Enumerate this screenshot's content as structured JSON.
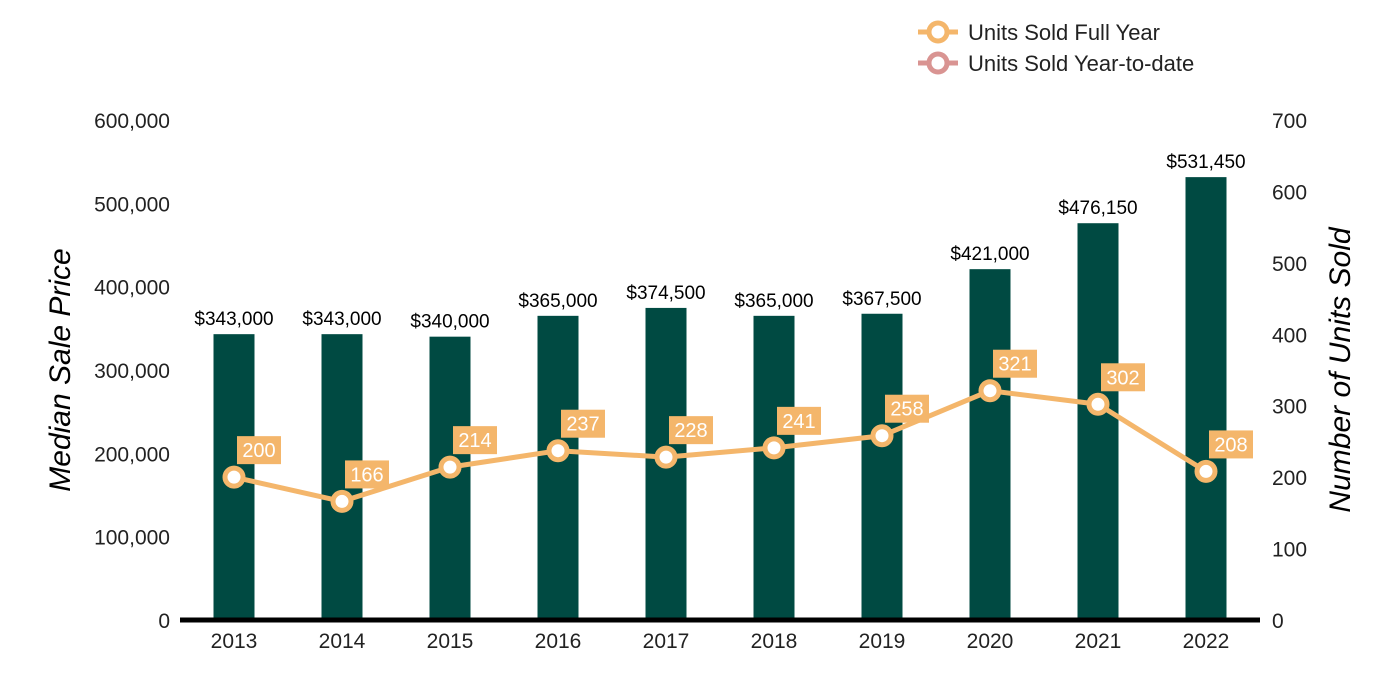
{
  "colors": {
    "bar": "#004a42",
    "line_full_year": "#f4b66b",
    "line_ytd": "#d99492",
    "baseline": "#000000"
  },
  "chart_data": {
    "type": "bar",
    "categories": [
      "2013",
      "2014",
      "2015",
      "2016",
      "2017",
      "2018",
      "2019",
      "2020",
      "2021",
      "2022"
    ],
    "series": [
      {
        "name": "Median Sale Price",
        "type": "bar",
        "axis": "left",
        "values": [
          343000,
          343000,
          340000,
          365000,
          374500,
          365000,
          367500,
          421000,
          476150,
          531450
        ],
        "labels": [
          "$343,000",
          "$343,000",
          "$340,000",
          "$365,000",
          "$374,500",
          "$365,000",
          "$367,500",
          "$421,000",
          "$476,150",
          "$531,450"
        ]
      },
      {
        "name": "Units Sold Full Year",
        "type": "line",
        "axis": "right",
        "values": [
          200,
          166,
          214,
          237,
          228,
          241,
          258,
          321,
          302,
          208
        ],
        "labels": [
          "200",
          "166",
          "214",
          "237",
          "228",
          "241",
          "258",
          "321",
          "302",
          "208"
        ]
      }
    ],
    "y_left": {
      "label": "Median Sale Price",
      "range": [
        0,
        600000
      ],
      "ticks": [
        0,
        100000,
        200000,
        300000,
        400000,
        500000,
        600000
      ],
      "tick_labels": [
        "0",
        "100,000",
        "200,000",
        "300,000",
        "400,000",
        "500,000",
        "600,000"
      ]
    },
    "y_right": {
      "label": "Number of Units Sold",
      "range": [
        0,
        700
      ],
      "ticks": [
        0,
        100,
        200,
        300,
        400,
        500,
        600,
        700
      ],
      "tick_labels": [
        "0",
        "100",
        "200",
        "300",
        "400",
        "500",
        "600",
        "700"
      ]
    },
    "legend": {
      "position": "top-right",
      "entries": [
        "Units Sold Full Year",
        "Units Sold Year-to-date"
      ]
    },
    "grid": false
  }
}
